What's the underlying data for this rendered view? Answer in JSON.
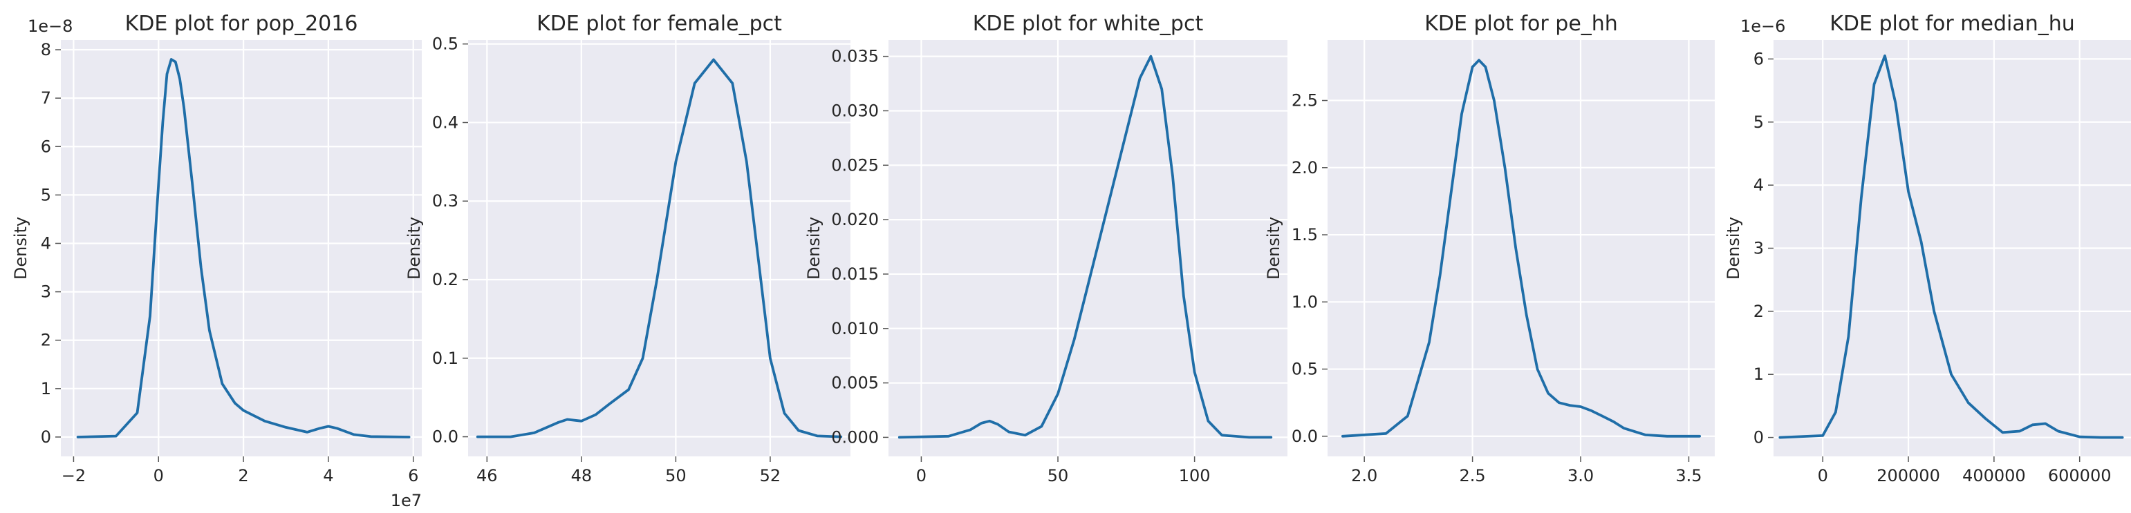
{
  "chart_data": [
    {
      "type": "line",
      "title": "KDE plot for pop_2016",
      "xlabel": "",
      "ylabel": "Density",
      "x_offset_label": "1e7",
      "y_offset_label": "1e−8",
      "xlim": [
        -2.3,
        6.2
      ],
      "ylim": [
        -0.4,
        8.2
      ],
      "xticks": [
        -2,
        0,
        2,
        4,
        6
      ],
      "xtick_labels": [
        "−2",
        "0",
        "2",
        "4",
        "6"
      ],
      "yticks": [
        0,
        1,
        2,
        3,
        4,
        5,
        6,
        7,
        8
      ],
      "ytick_labels": [
        "0",
        "1",
        "2",
        "3",
        "4",
        "5",
        "6",
        "7",
        "8"
      ],
      "series": [
        {
          "x": [
            -1.9,
            -1.0,
            -0.5,
            -0.2,
            0.0,
            0.1,
            0.2,
            0.3,
            0.4,
            0.5,
            0.6,
            0.8,
            1.0,
            1.2,
            1.5,
            1.8,
            2.0,
            2.5,
            3.0,
            3.5,
            3.8,
            4.0,
            4.2,
            4.6,
            5.0,
            5.9
          ],
          "y": [
            0.0,
            0.02,
            0.5,
            2.5,
            5.2,
            6.5,
            7.5,
            7.8,
            7.75,
            7.4,
            6.8,
            5.2,
            3.5,
            2.2,
            1.1,
            0.7,
            0.55,
            0.33,
            0.2,
            0.1,
            0.18,
            0.22,
            0.18,
            0.05,
            0.01,
            0.0
          ]
        }
      ]
    },
    {
      "type": "line",
      "title": "KDE plot for female_pct",
      "xlabel": "",
      "ylabel": "Density",
      "xlim": [
        45.6,
        53.7
      ],
      "ylim": [
        -0.025,
        0.505
      ],
      "xticks": [
        46,
        48,
        50,
        52
      ],
      "xtick_labels": [
        "46",
        "48",
        "50",
        "52"
      ],
      "yticks": [
        0.0,
        0.1,
        0.2,
        0.3,
        0.4,
        0.5
      ],
      "ytick_labels": [
        "0.0",
        "0.1",
        "0.2",
        "0.3",
        "0.4",
        "0.5"
      ],
      "series": [
        {
          "x": [
            45.8,
            46.5,
            47.0,
            47.5,
            47.7,
            48.0,
            48.3,
            48.6,
            49.0,
            49.3,
            49.6,
            50.0,
            50.4,
            50.8,
            51.2,
            51.5,
            51.8,
            52.0,
            52.3,
            52.6,
            53.0,
            53.5
          ],
          "y": [
            0.0,
            0.0,
            0.005,
            0.018,
            0.022,
            0.02,
            0.028,
            0.042,
            0.06,
            0.1,
            0.2,
            0.35,
            0.45,
            0.48,
            0.45,
            0.35,
            0.2,
            0.1,
            0.03,
            0.008,
            0.001,
            0.0
          ]
        }
      ]
    },
    {
      "type": "line",
      "title": "KDE plot for white_pct",
      "xlabel": "",
      "ylabel": "Density",
      "xlim": [
        -12,
        134
      ],
      "ylim": [
        -0.00175,
        0.0365
      ],
      "xticks": [
        0,
        50,
        100
      ],
      "xtick_labels": [
        "0",
        "50",
        "100"
      ],
      "yticks": [
        0.0,
        0.005,
        0.01,
        0.015,
        0.02,
        0.025,
        0.03,
        0.035
      ],
      "ytick_labels": [
        "0.000",
        "0.005",
        "0.010",
        "0.015",
        "0.020",
        "0.025",
        "0.030",
        "0.035"
      ],
      "series": [
        {
          "x": [
            -8,
            10,
            18,
            22,
            25,
            28,
            32,
            38,
            44,
            50,
            56,
            62,
            68,
            74,
            80,
            84,
            88,
            92,
            96,
            100,
            105,
            110,
            120,
            128
          ],
          "y": [
            0.0,
            0.0001,
            0.0007,
            0.0013,
            0.0015,
            0.0012,
            0.0005,
            0.0002,
            0.001,
            0.004,
            0.009,
            0.015,
            0.021,
            0.027,
            0.033,
            0.035,
            0.032,
            0.024,
            0.013,
            0.006,
            0.0015,
            0.0002,
            0.0,
            0.0
          ]
        }
      ]
    },
    {
      "type": "line",
      "title": "KDE plot for pe_hh",
      "xlabel": "",
      "ylabel": "Density",
      "xlim": [
        1.83,
        3.62
      ],
      "ylim": [
        -0.15,
        2.95
      ],
      "xticks": [
        2.0,
        2.5,
        3.0,
        3.5
      ],
      "xtick_labels": [
        "2.0",
        "2.5",
        "3.0",
        "3.5"
      ],
      "yticks": [
        0.0,
        0.5,
        1.0,
        1.5,
        2.0,
        2.5
      ],
      "ytick_labels": [
        "0.0",
        "0.5",
        "1.0",
        "1.5",
        "2.0",
        "2.5"
      ],
      "series": [
        {
          "x": [
            1.9,
            2.1,
            2.2,
            2.3,
            2.35,
            2.4,
            2.45,
            2.5,
            2.53,
            2.56,
            2.6,
            2.65,
            2.7,
            2.75,
            2.8,
            2.85,
            2.9,
            2.95,
            3.0,
            3.05,
            3.1,
            3.15,
            3.2,
            3.3,
            3.4,
            3.55
          ],
          "y": [
            0.0,
            0.02,
            0.15,
            0.7,
            1.2,
            1.8,
            2.4,
            2.75,
            2.8,
            2.75,
            2.5,
            2.0,
            1.4,
            0.9,
            0.5,
            0.32,
            0.25,
            0.23,
            0.22,
            0.19,
            0.15,
            0.11,
            0.06,
            0.01,
            0.0,
            0.0
          ]
        }
      ]
    },
    {
      "type": "line",
      "title": "KDE plot for median_hu",
      "xlabel": "",
      "ylabel": "Density",
      "y_offset_label": "1e−6",
      "xlim": [
        -115000,
        720000
      ],
      "ylim": [
        -0.3,
        6.3
      ],
      "xticks": [
        0,
        200000,
        400000,
        600000
      ],
      "xtick_labels": [
        "0",
        "200000",
        "400000",
        "600000"
      ],
      "yticks": [
        0,
        1,
        2,
        3,
        4,
        5,
        6
      ],
      "ytick_labels": [
        "0",
        "1",
        "2",
        "3",
        "4",
        "5",
        "6"
      ],
      "series": [
        {
          "x": [
            -100000,
            0,
            30000,
            60000,
            90000,
            120000,
            145000,
            170000,
            200000,
            230000,
            260000,
            300000,
            340000,
            380000,
            420000,
            460000,
            490000,
            520000,
            550000,
            600000,
            650000,
            700000
          ],
          "y": [
            0.0,
            0.03,
            0.4,
            1.6,
            3.8,
            5.6,
            6.05,
            5.3,
            3.9,
            3.1,
            2.0,
            1.0,
            0.55,
            0.3,
            0.08,
            0.1,
            0.2,
            0.22,
            0.1,
            0.01,
            0.0,
            0.0
          ]
        }
      ]
    }
  ]
}
